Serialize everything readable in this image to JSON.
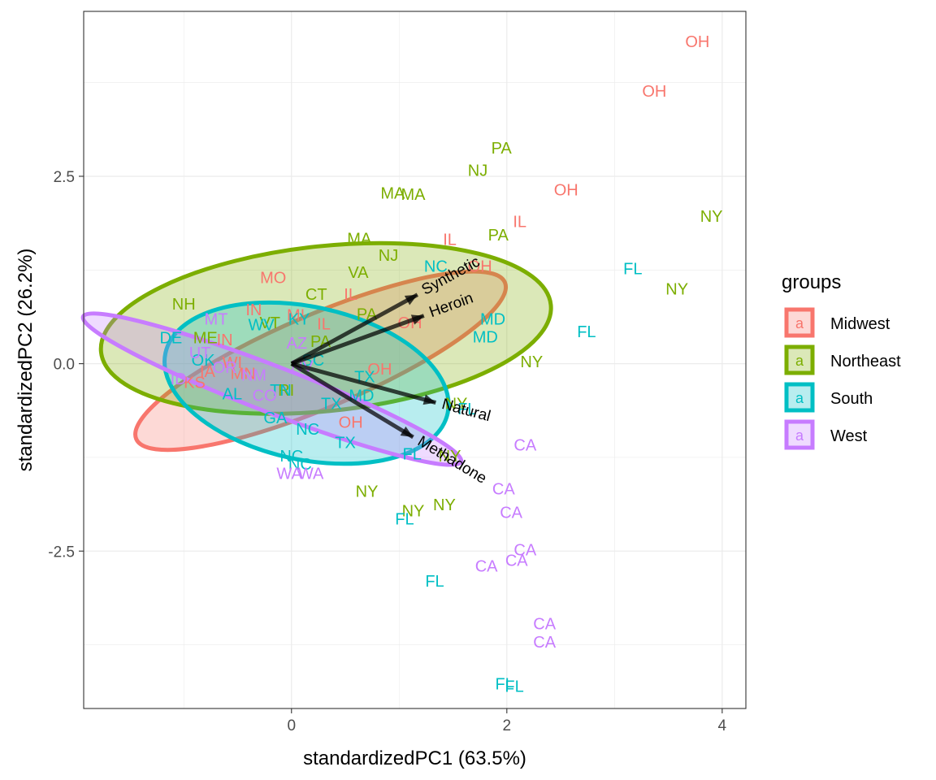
{
  "chart_data": {
    "type": "scatter",
    "subtype": "pca-biplot",
    "xlabel": "standardizedPC1 (63.5%)",
    "ylabel": "standardizedPC2 (26.2%)",
    "xlim": [
      -1.93,
      4.22
    ],
    "ylim": [
      -4.6,
      4.7
    ],
    "x_ticks": [
      0,
      2,
      4
    ],
    "y_ticks": [
      -2.5,
      0.0,
      2.5
    ],
    "x_tick_labels": [
      "0",
      "2",
      "4"
    ],
    "y_tick_labels": [
      "-2.5",
      "0.0",
      "2.5"
    ],
    "grid": true,
    "legend": {
      "title": "groups",
      "placement": "right",
      "key_glyph": "a",
      "entries": [
        "Midwest",
        "Northeast",
        "South",
        "West"
      ]
    },
    "colors": {
      "Midwest": "#F8766D",
      "Northeast": "#7CAE00",
      "South": "#00BFC4",
      "West": "#C77CFF"
    },
    "ellipses": [
      {
        "group": "Midwest",
        "cx": 0.27,
        "cy": 0.04,
        "rx": 1.86,
        "ry": 0.62,
        "angle_deg": 23
      },
      {
        "group": "Northeast",
        "cx": 0.32,
        "cy": 0.47,
        "rx": 2.1,
        "ry": 1.1,
        "angle_deg": 6
      },
      {
        "group": "South",
        "cx": 0.14,
        "cy": -0.26,
        "rx": 1.34,
        "ry": 1.02,
        "angle_deg": -12
      },
      {
        "group": "West",
        "cx": -0.18,
        "cy": -0.34,
        "rx": 1.88,
        "ry": 0.31,
        "angle_deg": -21
      }
    ],
    "loadings": [
      {
        "name": "Synthetic",
        "x": 1.17,
        "y": 0.92
      },
      {
        "name": "Heroin",
        "x": 1.23,
        "y": 0.64
      },
      {
        "name": "Natural",
        "x": 1.34,
        "y": -0.52
      },
      {
        "name": "Methadone",
        "x": 1.13,
        "y": -0.98
      }
    ],
    "points": [
      {
        "label": "OH",
        "group": "Midwest",
        "x": 3.77,
        "y": 4.3
      },
      {
        "label": "OH",
        "group": "Midwest",
        "x": 3.37,
        "y": 3.64
      },
      {
        "label": "OH",
        "group": "Midwest",
        "x": 2.55,
        "y": 2.32
      },
      {
        "label": "IL",
        "group": "Midwest",
        "x": 2.12,
        "y": 1.9
      },
      {
        "label": "IL",
        "group": "Midwest",
        "x": 1.47,
        "y": 1.66
      },
      {
        "label": "OH",
        "group": "Midwest",
        "x": 1.75,
        "y": 1.3
      },
      {
        "label": "IL",
        "group": "Midwest",
        "x": 0.55,
        "y": 0.93
      },
      {
        "label": "MO",
        "group": "Midwest",
        "x": -0.17,
        "y": 1.15
      },
      {
        "label": "MI",
        "group": "Midwest",
        "x": 0.04,
        "y": 0.65
      },
      {
        "label": "IL",
        "group": "Midwest",
        "x": 0.3,
        "y": 0.53
      },
      {
        "label": "OH",
        "group": "Midwest",
        "x": 1.1,
        "y": 0.55
      },
      {
        "label": "OH",
        "group": "Midwest",
        "x": 0.82,
        "y": -0.07
      },
      {
        "label": "OH",
        "group": "Midwest",
        "x": 0.55,
        "y": -0.78
      },
      {
        "label": "IN",
        "group": "Midwest",
        "x": -0.35,
        "y": 0.72
      },
      {
        "label": "IN",
        "group": "Midwest",
        "x": -0.62,
        "y": 0.32
      },
      {
        "label": "WI",
        "group": "Midwest",
        "x": -0.55,
        "y": 0.02
      },
      {
        "label": "MN",
        "group": "Midwest",
        "x": -0.45,
        "y": -0.13
      },
      {
        "label": "IA",
        "group": "Midwest",
        "x": -0.78,
        "y": -0.1
      },
      {
        "label": "KS",
        "group": "Midwest",
        "x": -0.9,
        "y": -0.25
      },
      {
        "label": "PA",
        "group": "Northeast",
        "x": 1.95,
        "y": 2.88
      },
      {
        "label": "NJ",
        "group": "Northeast",
        "x": 1.73,
        "y": 2.58
      },
      {
        "label": "MA",
        "group": "Northeast",
        "x": 0.94,
        "y": 2.28
      },
      {
        "label": "MA",
        "group": "Northeast",
        "x": 1.13,
        "y": 2.26
      },
      {
        "label": "PA",
        "group": "Northeast",
        "x": 1.92,
        "y": 1.72
      },
      {
        "label": "MA",
        "group": "Northeast",
        "x": 0.63,
        "y": 1.67
      },
      {
        "label": "NJ",
        "group": "Northeast",
        "x": 0.9,
        "y": 1.45
      },
      {
        "label": "VA",
        "group": "Northeast",
        "x": 0.62,
        "y": 1.22
      },
      {
        "label": "NY",
        "group": "Northeast",
        "x": 3.9,
        "y": 1.97
      },
      {
        "label": "NY",
        "group": "Northeast",
        "x": 3.58,
        "y": 1.0
      },
      {
        "label": "NY",
        "group": "Northeast",
        "x": 2.23,
        "y": 0.03
      },
      {
        "label": "NY",
        "group": "Northeast",
        "x": 1.53,
        "y": -0.53
      },
      {
        "label": "NY",
        "group": "Northeast",
        "x": 1.47,
        "y": -1.23
      },
      {
        "label": "NY",
        "group": "Northeast",
        "x": 1.42,
        "y": -1.88
      },
      {
        "label": "NY",
        "group": "Northeast",
        "x": 1.13,
        "y": -1.96
      },
      {
        "label": "NY",
        "group": "Northeast",
        "x": 0.7,
        "y": -1.7
      },
      {
        "label": "PA",
        "group": "Northeast",
        "x": 0.7,
        "y": 0.66
      },
      {
        "label": "PA",
        "group": "Northeast",
        "x": 0.27,
        "y": 0.3
      },
      {
        "label": "CT",
        "group": "Northeast",
        "x": 0.23,
        "y": 0.93
      },
      {
        "label": "NH",
        "group": "Northeast",
        "x": -1.0,
        "y": 0.8
      },
      {
        "label": "VT",
        "group": "Northeast",
        "x": -0.2,
        "y": 0.55
      },
      {
        "label": "ME",
        "group": "Northeast",
        "x": -0.8,
        "y": 0.35
      },
      {
        "label": "RI",
        "group": "Northeast",
        "x": -0.05,
        "y": -0.35
      },
      {
        "label": "NC",
        "group": "South",
        "x": 1.34,
        "y": 1.3
      },
      {
        "label": "MD",
        "group": "South",
        "x": 1.87,
        "y": 0.6
      },
      {
        "label": "MD",
        "group": "South",
        "x": 1.8,
        "y": 0.36
      },
      {
        "label": "FL",
        "group": "South",
        "x": 3.17,
        "y": 1.27
      },
      {
        "label": "FL",
        "group": "South",
        "x": 2.74,
        "y": 0.43
      },
      {
        "label": "FL",
        "group": "South",
        "x": 1.63,
        "y": -0.6
      },
      {
        "label": "FL",
        "group": "South",
        "x": 1.05,
        "y": -2.07
      },
      {
        "label": "FL",
        "group": "South",
        "x": 1.33,
        "y": -2.9
      },
      {
        "label": "FL",
        "group": "South",
        "x": 1.98,
        "y": -4.27
      },
      {
        "label": "FL",
        "group": "South",
        "x": 2.07,
        "y": -4.3
      },
      {
        "label": "FL",
        "group": "South",
        "x": 1.12,
        "y": -1.2
      },
      {
        "label": "TX",
        "group": "South",
        "x": 0.68,
        "y": -0.17
      },
      {
        "label": "TX",
        "group": "South",
        "x": 0.37,
        "y": -0.53
      },
      {
        "label": "TX",
        "group": "South",
        "x": 0.5,
        "y": -1.05
      },
      {
        "label": "NC",
        "group": "South",
        "x": 0.15,
        "y": -0.87
      },
      {
        "label": "NC",
        "group": "South",
        "x": 0.0,
        "y": -1.23
      },
      {
        "label": "NC",
        "group": "South",
        "x": 0.08,
        "y": -1.34
      },
      {
        "label": "KY",
        "group": "South",
        "x": 0.07,
        "y": 0.6
      },
      {
        "label": "WV",
        "group": "South",
        "x": -0.28,
        "y": 0.52
      },
      {
        "label": "TN",
        "group": "South",
        "x": -0.1,
        "y": -0.35
      },
      {
        "label": "SC",
        "group": "South",
        "x": 0.2,
        "y": 0.05
      },
      {
        "label": "GA",
        "group": "South",
        "x": -0.15,
        "y": -0.72
      },
      {
        "label": "AL",
        "group": "South",
        "x": -0.55,
        "y": -0.4
      },
      {
        "label": "OK",
        "group": "South",
        "x": -0.82,
        "y": 0.05
      },
      {
        "label": "DE",
        "group": "South",
        "x": -1.12,
        "y": 0.35
      },
      {
        "label": "MD",
        "group": "South",
        "x": 0.65,
        "y": -0.42
      },
      {
        "label": "CA",
        "group": "West",
        "x": 2.17,
        "y": -1.08
      },
      {
        "label": "CA",
        "group": "West",
        "x": 1.97,
        "y": -1.67
      },
      {
        "label": "CA",
        "group": "West",
        "x": 2.04,
        "y": -1.98
      },
      {
        "label": "CA",
        "group": "West",
        "x": 2.17,
        "y": -2.48
      },
      {
        "label": "CA",
        "group": "West",
        "x": 2.09,
        "y": -2.62
      },
      {
        "label": "CA",
        "group": "West",
        "x": 1.81,
        "y": -2.7
      },
      {
        "label": "CA",
        "group": "West",
        "x": 2.35,
        "y": -3.47
      },
      {
        "label": "CA",
        "group": "West",
        "x": 2.35,
        "y": -3.71
      },
      {
        "label": "WA",
        "group": "West",
        "x": -0.02,
        "y": -1.46
      },
      {
        "label": "WA",
        "group": "West",
        "x": 0.18,
        "y": -1.46
      },
      {
        "label": "AZ",
        "group": "West",
        "x": 0.05,
        "y": 0.28
      },
      {
        "label": "NM",
        "group": "West",
        "x": -0.35,
        "y": -0.15
      },
      {
        "label": "OR",
        "group": "West",
        "x": -0.62,
        "y": -0.05
      },
      {
        "label": "CO",
        "group": "West",
        "x": -0.25,
        "y": -0.42
      },
      {
        "label": "NV",
        "group": "West",
        "x": 0.1,
        "y": -0.03
      },
      {
        "label": "UT",
        "group": "West",
        "x": -0.85,
        "y": 0.15
      },
      {
        "label": "ID",
        "group": "West",
        "x": -1.05,
        "y": -0.2
      },
      {
        "label": "MT",
        "group": "West",
        "x": -0.7,
        "y": 0.6
      }
    ]
  }
}
